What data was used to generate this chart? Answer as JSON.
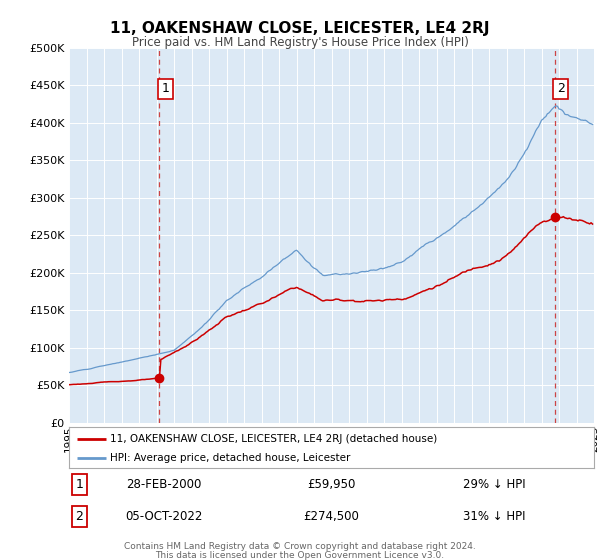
{
  "title": "11, OAKENSHAW CLOSE, LEICESTER, LE4 2RJ",
  "subtitle": "Price paid vs. HM Land Registry's House Price Index (HPI)",
  "bg_color": "#dce9f5",
  "fig_bg_color": "#ffffff",
  "red_color": "#cc0000",
  "blue_color": "#6699cc",
  "grid_color": "#ffffff",
  "dashed_color": "#cc4444",
  "sale1_year": 2000.167,
  "sale1_price": 59950,
  "sale1_date": "28-FEB-2000",
  "sale1_pct": "29%",
  "sale2_year": 2022.75,
  "sale2_price": 274500,
  "sale2_date": "05-OCT-2022",
  "sale2_pct": "31%",
  "ylim_max": 500000,
  "ylim_min": 0,
  "xmin": 1995,
  "xmax": 2025,
  "legend1": "11, OAKENSHAW CLOSE, LEICESTER, LE4 2RJ (detached house)",
  "legend2": "HPI: Average price, detached house, Leicester",
  "footer1": "Contains HM Land Registry data © Crown copyright and database right 2024.",
  "footer2": "This data is licensed under the Open Government Licence v3.0."
}
